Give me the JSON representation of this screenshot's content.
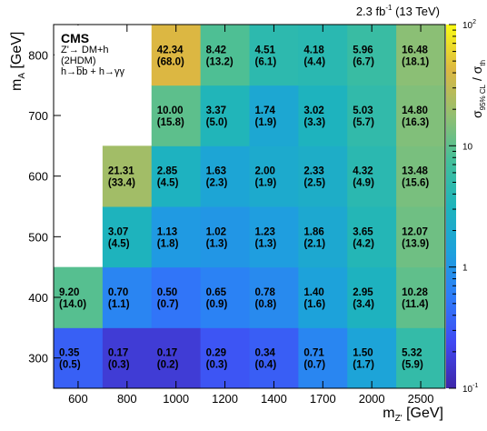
{
  "chart_data": {
    "type": "heatmap",
    "lumi_label": "2.3 fb",
    "lumi_exp": "-1",
    "energy_label": "(13 TeV)",
    "legend_box": {
      "experiment": "CMS",
      "lines": [
        "Z'→ DM+h",
        "(2HDM)",
        "h→b̅b + h→γγ"
      ]
    },
    "xlabel": "m",
    "xlabel_sub": "Z'",
    "xlabel_unit": " [GeV]",
    "ylabel": "m",
    "ylabel_sub": "A",
    "ylabel_unit": " [GeV]",
    "zlabel": "σ",
    "zlabel_sub": "95% CL",
    "zlabel_mid": " / σ",
    "zlabel_sub2": "th",
    "x_categories": [
      "600",
      "800",
      "1000",
      "1200",
      "1400",
      "1700",
      "2000",
      "2500"
    ],
    "y_categories": [
      "300",
      "400",
      "500",
      "600",
      "700",
      "800"
    ],
    "z_scale": "log",
    "z_range": [
      0.1,
      100
    ],
    "z_ticks": [
      {
        "value": 0.1,
        "base": "10",
        "exp": "-1"
      },
      {
        "value": 1,
        "base": "1",
        "exp": ""
      },
      {
        "value": 10,
        "base": "10",
        "exp": ""
      },
      {
        "value": 100,
        "base": "10",
        "exp": "2"
      }
    ],
    "cells": [
      {
        "x": "600",
        "y": "300",
        "observed": "0.35",
        "expected": "(0.5)"
      },
      {
        "x": "800",
        "y": "300",
        "observed": "0.17",
        "expected": "(0.3)"
      },
      {
        "x": "1000",
        "y": "300",
        "observed": "0.17",
        "expected": "(0.2)"
      },
      {
        "x": "1200",
        "y": "300",
        "observed": "0.29",
        "expected": "(0.3)"
      },
      {
        "x": "1400",
        "y": "300",
        "observed": "0.34",
        "expected": "(0.4)"
      },
      {
        "x": "1700",
        "y": "300",
        "observed": "0.71",
        "expected": "(0.7)"
      },
      {
        "x": "2000",
        "y": "300",
        "observed": "1.50",
        "expected": "(1.7)"
      },
      {
        "x": "2500",
        "y": "300",
        "observed": "5.32",
        "expected": "(5.9)"
      },
      {
        "x": "600",
        "y": "400",
        "observed": "9.20",
        "expected": "(14.0)"
      },
      {
        "x": "800",
        "y": "400",
        "observed": "0.70",
        "expected": "(1.1)"
      },
      {
        "x": "1000",
        "y": "400",
        "observed": "0.50",
        "expected": "(0.7)"
      },
      {
        "x": "1200",
        "y": "400",
        "observed": "0.65",
        "expected": "(0.9)"
      },
      {
        "x": "1400",
        "y": "400",
        "observed": "0.78",
        "expected": "(0.8)"
      },
      {
        "x": "1700",
        "y": "400",
        "observed": "1.40",
        "expected": "(1.6)"
      },
      {
        "x": "2000",
        "y": "400",
        "observed": "2.95",
        "expected": "(3.4)"
      },
      {
        "x": "2500",
        "y": "400",
        "observed": "10.28",
        "expected": "(11.4)"
      },
      {
        "x": "800",
        "y": "500",
        "observed": "3.07",
        "expected": "(4.5)"
      },
      {
        "x": "1000",
        "y": "500",
        "observed": "1.13",
        "expected": "(1.8)"
      },
      {
        "x": "1200",
        "y": "500",
        "observed": "1.02",
        "expected": "(1.3)"
      },
      {
        "x": "1400",
        "y": "500",
        "observed": "1.23",
        "expected": "(1.3)"
      },
      {
        "x": "1700",
        "y": "500",
        "observed": "1.86",
        "expected": "(2.1)"
      },
      {
        "x": "2000",
        "y": "500",
        "observed": "3.65",
        "expected": "(4.2)"
      },
      {
        "x": "2500",
        "y": "500",
        "observed": "12.07",
        "expected": "(13.9)"
      },
      {
        "x": "800",
        "y": "600",
        "observed": "21.31",
        "expected": "(33.4)"
      },
      {
        "x": "1000",
        "y": "600",
        "observed": "2.85",
        "expected": "(4.5)"
      },
      {
        "x": "1200",
        "y": "600",
        "observed": "1.63",
        "expected": "(2.3)"
      },
      {
        "x": "1400",
        "y": "600",
        "observed": "2.00",
        "expected": "(1.9)"
      },
      {
        "x": "1700",
        "y": "600",
        "observed": "2.33",
        "expected": "(2.5)"
      },
      {
        "x": "2000",
        "y": "600",
        "observed": "4.32",
        "expected": "(4.9)"
      },
      {
        "x": "2500",
        "y": "600",
        "observed": "13.48",
        "expected": "(15.6)"
      },
      {
        "x": "1000",
        "y": "700",
        "observed": "10.00",
        "expected": "(15.8)"
      },
      {
        "x": "1200",
        "y": "700",
        "observed": "3.37",
        "expected": "(5.0)"
      },
      {
        "x": "1400",
        "y": "700",
        "observed": "1.74",
        "expected": "(1.9)"
      },
      {
        "x": "1700",
        "y": "700",
        "observed": "3.02",
        "expected": "(3.3)"
      },
      {
        "x": "2000",
        "y": "700",
        "observed": "5.03",
        "expected": "(5.7)"
      },
      {
        "x": "2500",
        "y": "700",
        "observed": "14.80",
        "expected": "(16.3)"
      },
      {
        "x": "1000",
        "y": "800",
        "observed": "42.34",
        "expected": "(68.0)"
      },
      {
        "x": "1200",
        "y": "800",
        "observed": "8.42",
        "expected": "(13.2)"
      },
      {
        "x": "1400",
        "y": "800",
        "observed": "4.51",
        "expected": "(6.1)"
      },
      {
        "x": "1700",
        "y": "800",
        "observed": "4.18",
        "expected": "(4.4)"
      },
      {
        "x": "2000",
        "y": "800",
        "observed": "5.96",
        "expected": "(6.7)"
      },
      {
        "x": "2500",
        "y": "800",
        "observed": "16.48",
        "expected": "(18.1)"
      }
    ]
  }
}
